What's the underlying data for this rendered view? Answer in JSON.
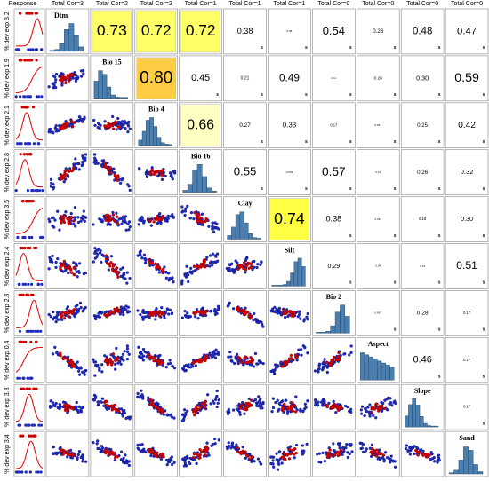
{
  "header": {
    "columns": [
      "Response",
      "Total Cor=3",
      "Total Cor=2",
      "Total Cor=2",
      "Total Cor=1",
      "Total Cor=1",
      "Total Cor=1",
      "Total Cor=0",
      "Total Cor=0",
      "Total Cor=0",
      "Total Cor=0"
    ]
  },
  "rows": [
    {
      "label": "% dev exp 3.2",
      "variable": "Dtm",
      "correlations": [
        {
          "text": "0.73",
          "fill": "#ffff66"
        },
        {
          "text": "0.72",
          "fill": "#ffff66"
        },
        {
          "text": "0.72",
          "fill": "#ffff66"
        },
        {
          "text": "0.38",
          "sig": "s"
        },
        {
          "text": "0.08",
          "sig": "s"
        },
        {
          "text": "0.54",
          "sig": "s"
        },
        {
          "text": "0.26",
          "sig": "s"
        },
        {
          "text": "0.48",
          "sig": "s"
        },
        {
          "text": "0.47",
          "sig": "s"
        }
      ]
    },
    {
      "label": "% dev exp 1.9",
      "variable": "Bio 15",
      "correlations": [
        {
          "text": "0.80",
          "fill": "#ffcc44"
        },
        {
          "text": "0.45",
          "sig": "s"
        },
        {
          "text": "0.21",
          "sig": "s"
        },
        {
          "text": "0.49",
          "sig": "s"
        },
        {
          "text": "0.11",
          "sig": "s"
        },
        {
          "text": "0.20",
          "sig": "s"
        },
        {
          "text": "0.30",
          "sig": "s"
        },
        {
          "text": "0.59",
          "sig": "s"
        }
      ]
    },
    {
      "label": "% dev exp 2.1",
      "variable": "Bio 4",
      "correlations": [
        {
          "text": "0.66",
          "fill": "#ffffc4"
        },
        {
          "text": "0.27",
          "sig": "s"
        },
        {
          "text": "0.33",
          "sig": "s"
        },
        {
          "text": "0.17",
          "sig": "s"
        },
        {
          "text": "0.067",
          "sig": "s"
        },
        {
          "text": "0.25",
          "sig": "s"
        },
        {
          "text": "0.42",
          "sig": "s"
        }
      ]
    },
    {
      "label": "% dev exp 2.8",
      "variable": "Bio 16",
      "correlations": [
        {
          "text": "0.55",
          "sig": "s"
        },
        {
          "text": "0.033",
          "sig": "s"
        },
        {
          "text": "0.57",
          "sig": "s"
        },
        {
          "text": "0.11",
          "sig": "s"
        },
        {
          "text": "0.26",
          "sig": "s"
        },
        {
          "text": "0.32",
          "sig": "s"
        }
      ]
    },
    {
      "label": "% dev exp 3.5",
      "variable": "Clay",
      "correlations": [
        {
          "text": "0.74",
          "fill": "#ffff44"
        },
        {
          "text": "0.38",
          "sig": "s"
        },
        {
          "text": "0.033",
          "sig": "s"
        },
        {
          "text": "0.18",
          "sig": "s"
        },
        {
          "text": "0.30",
          "sig": "s"
        }
      ]
    },
    {
      "label": "% dev exp 2.4",
      "variable": "Silt",
      "correlations": [
        {
          "text": "0.29",
          "sig": "s"
        },
        {
          "text": "0.04",
          "sig": "s"
        },
        {
          "text": "0.13",
          "sig": "s"
        },
        {
          "text": "0.51",
          "sig": "s"
        }
      ]
    },
    {
      "label": "% dev exp 2.8",
      "variable": "Bio 2",
      "correlations": [
        {
          "text": "0.067",
          "sig": "s"
        },
        {
          "text": "0.28",
          "sig": "s"
        },
        {
          "text": "0.17",
          "sig": "s"
        }
      ]
    },
    {
      "label": "% dev exp 0.4",
      "variable": "Aspect",
      "correlations": [
        {
          "text": "0.46",
          "sig": "s"
        },
        {
          "text": "0.17",
          "sig": "s"
        }
      ]
    },
    {
      "label": "% dev exp 3.8",
      "variable": "Slope",
      "correlations": [
        {
          "text": "0.17",
          "sig": "s"
        }
      ]
    },
    {
      "label": "% dev exp 3.4",
      "variable": "Sand",
      "correlations": []
    }
  ]
}
